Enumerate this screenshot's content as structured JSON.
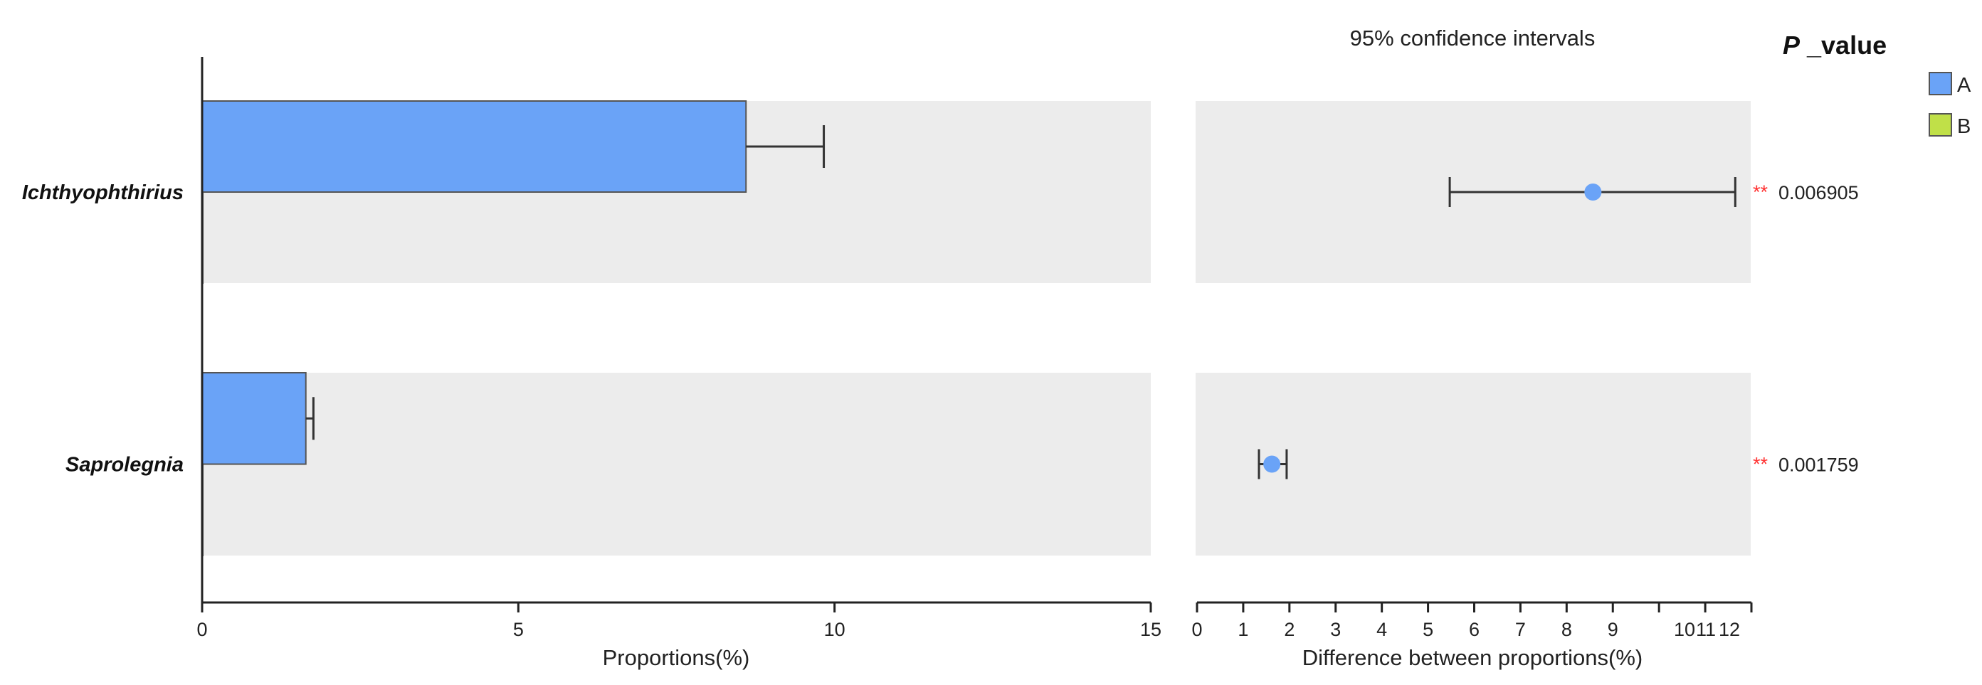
{
  "chart_data": [
    {
      "type": "bar",
      "orientation": "horizontal",
      "categories": [
        "Ichthyophthirius",
        "Saprolegnia"
      ],
      "series": [
        {
          "name": "A",
          "color": "#6aa3f7",
          "values": [
            8.6,
            1.64
          ],
          "error_upper": [
            9.83,
            1.76
          ]
        },
        {
          "name": "B",
          "color": "#c0e048",
          "values": [
            0.0,
            0.0
          ]
        }
      ],
      "xlabel": "Proportions(%)",
      "xlim": [
        0,
        15
      ],
      "xticks": [
        0,
        5,
        10,
        15
      ],
      "band_color": "#ececec"
    },
    {
      "type": "scatter",
      "title": "95% confidence intervals",
      "categories": [
        "Ichthyophthirius",
        "Saprolegnia"
      ],
      "estimate": [
        8.57,
        1.62
      ],
      "ci_lower": [
        5.47,
        1.34
      ],
      "ci_upper": [
        11.65,
        1.94
      ],
      "point_color": "#6aa3f7",
      "xlabel": "Difference between proportions(%)",
      "xlim": [
        0,
        12
      ],
      "xticks": [
        0,
        1,
        2,
        3,
        4,
        5,
        6,
        7,
        8,
        9,
        10,
        11,
        12
      ],
      "significance": [
        "**",
        "**"
      ],
      "p_values": [
        "0.006905",
        "0.001759"
      ]
    }
  ],
  "legend": {
    "title_italic": "P",
    "title_rest": " _value",
    "items": [
      {
        "label": "A",
        "color": "#6aa3f7"
      },
      {
        "label": "B",
        "color": "#c0e048"
      }
    ],
    "placement": "top-right"
  }
}
